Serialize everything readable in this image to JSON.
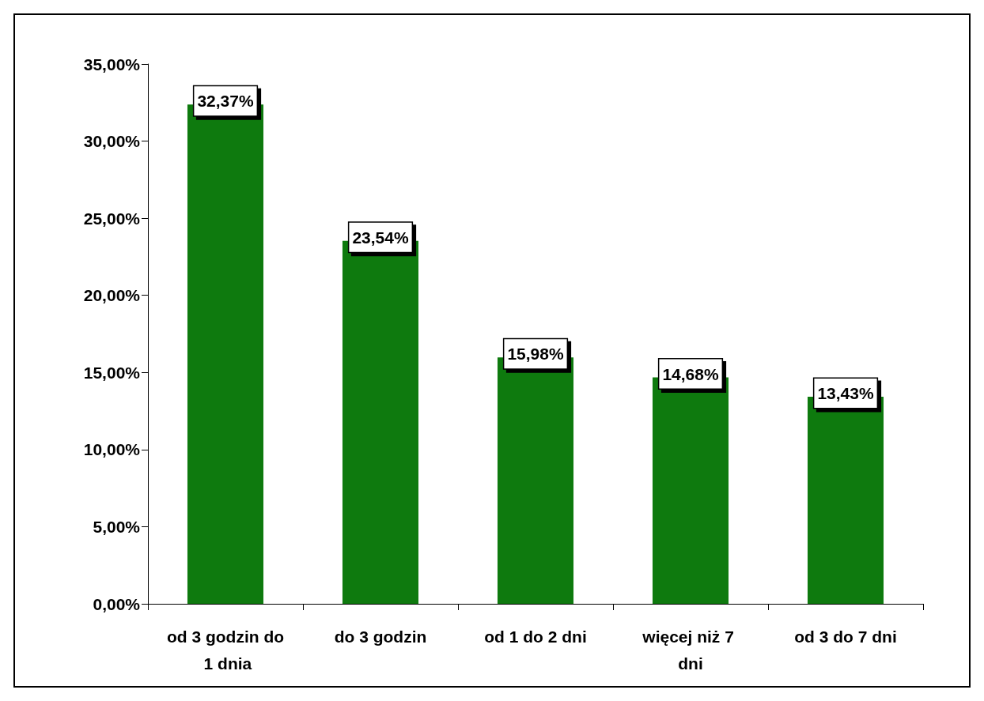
{
  "chart_data": {
    "type": "bar",
    "categories": [
      "od 3 godzin do 1 dnia",
      "do 3 godzin",
      "od 1 do 2 dni",
      "więcej niż 7 dni",
      "od 3 do 7 dni"
    ],
    "values": [
      32.37,
      23.54,
      15.98,
      14.68,
      13.43
    ],
    "value_labels": [
      "32,37%",
      "23,54%",
      "15,98%",
      "14,68%",
      "13,43%"
    ],
    "color": "#0e7a0e",
    "ylim": [
      0,
      35
    ],
    "yticks": [
      {
        "value": 0,
        "label": "0,00%"
      },
      {
        "value": 5,
        "label": "5,00%"
      },
      {
        "value": 10,
        "label": "10,00%"
      },
      {
        "value": 15,
        "label": "15,00%"
      },
      {
        "value": 20,
        "label": "20,00%"
      },
      {
        "value": 25,
        "label": "25,00%"
      },
      {
        "value": 30,
        "label": "30,00%"
      },
      {
        "value": 35,
        "label": "35,00%"
      }
    ],
    "grid": false
  }
}
